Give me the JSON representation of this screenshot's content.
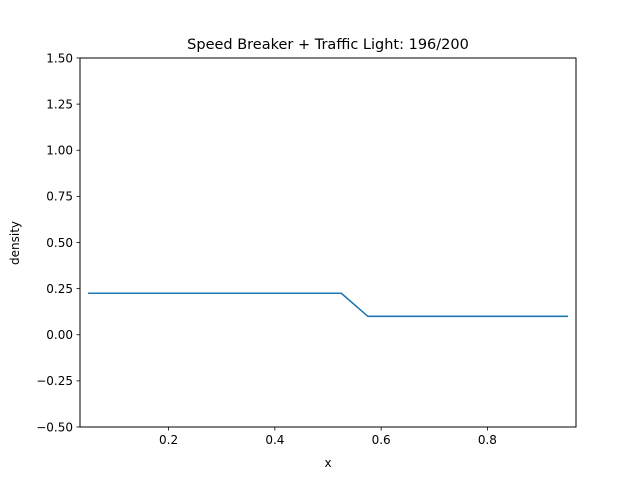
{
  "chart_data": {
    "type": "line",
    "title": "Speed Breaker + Traffic Light: 196/200",
    "xlabel": "x",
    "ylabel": "density",
    "xlim": [
      0.0333,
      0.9667
    ],
    "ylim": [
      -0.5,
      1.5
    ],
    "xticks": [
      0.2,
      0.4,
      0.6,
      0.8
    ],
    "xtick_labels": [
      "0.2",
      "0.4",
      "0.6",
      "0.8"
    ],
    "yticks": [
      -0.5,
      -0.25,
      0.0,
      0.25,
      0.5,
      0.75,
      1.0,
      1.25,
      1.5
    ],
    "ytick_labels": [
      "−0.50",
      "−0.25",
      "0.00",
      "0.25",
      "0.50",
      "0.75",
      "1.00",
      "1.25",
      "1.50"
    ],
    "grid": false,
    "series": [
      {
        "color": "#1f77b4",
        "x": [
          0.05,
          0.1,
          0.15,
          0.2,
          0.25,
          0.3,
          0.35,
          0.4,
          0.45,
          0.5,
          0.525,
          0.575,
          0.6,
          0.65,
          0.7,
          0.75,
          0.8,
          0.85,
          0.9,
          0.95
        ],
        "y": [
          0.225,
          0.225,
          0.225,
          0.225,
          0.225,
          0.225,
          0.225,
          0.225,
          0.225,
          0.225,
          0.225,
          0.1,
          0.1,
          0.1,
          0.1,
          0.1,
          0.1,
          0.1,
          0.1,
          0.1
        ]
      }
    ]
  }
}
